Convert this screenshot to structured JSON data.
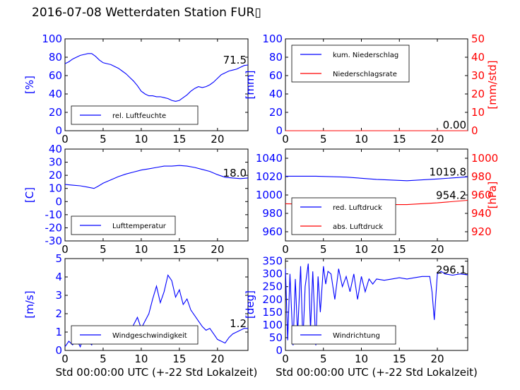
{
  "title": "2016-07-08 Wetterdaten Station FUR▯",
  "xlabel": "Std 00:00:00 UTC (+-22 Std Lokalzeit)",
  "colors": {
    "blue": "#0000ff",
    "red": "#ff0000",
    "black": "#000000"
  },
  "chart_data": [
    {
      "type": "line",
      "panel": "top-left",
      "xlim": [
        0,
        24
      ],
      "ylim": [
        0,
        100
      ],
      "xticks": [
        0,
        5,
        10,
        15,
        20
      ],
      "yticks": [
        0,
        20,
        40,
        60,
        80,
        100
      ],
      "ylabel": "[%]",
      "series": [
        {
          "name": "rel. Luftfeuchte",
          "color": "#0000ff",
          "x": [
            0,
            0.5,
            1,
            1.5,
            2,
            2.5,
            3,
            3.5,
            4,
            4.5,
            5,
            5.5,
            6,
            6.5,
            7,
            7.5,
            8,
            8.5,
            9,
            9.5,
            10,
            10.5,
            11,
            11.5,
            12,
            12.5,
            13,
            13.5,
            14,
            14.5,
            15,
            15.5,
            16,
            16.5,
            17,
            17.5,
            18,
            18.5,
            19,
            19.5,
            20,
            20.5,
            21,
            21.5,
            22,
            22.5,
            23,
            23.5,
            24
          ],
          "y": [
            73,
            75,
            78,
            80,
            82,
            83,
            84,
            84,
            81,
            77,
            74,
            73,
            72,
            70,
            68,
            65,
            62,
            58,
            54,
            49,
            43,
            40,
            38,
            38,
            37,
            37,
            36,
            35,
            33,
            32,
            33,
            36,
            39,
            43,
            46,
            48,
            47,
            48,
            50,
            53,
            57,
            61,
            63,
            65,
            66,
            67,
            69,
            71,
            71.5
          ]
        }
      ],
      "legend": "lower-left",
      "annotation": "71.5"
    },
    {
      "type": "line",
      "panel": "top-right",
      "xlim": [
        0,
        24
      ],
      "ylim": [
        0,
        100
      ],
      "xticks": [
        0,
        5,
        10,
        15,
        20
      ],
      "yticks": [
        0,
        20,
        40,
        60,
        80,
        100
      ],
      "y2lim": [
        0,
        50
      ],
      "y2ticks": [
        0,
        10,
        20,
        30,
        40,
        50
      ],
      "ylabel": "[mm]",
      "y2label": "[mm/std]",
      "series": [
        {
          "name": "kum. Niederschlag",
          "color": "#0000ff",
          "x": [
            0,
            24
          ],
          "y": [
            0,
            0
          ]
        },
        {
          "name": "Niederschlagsrate",
          "color": "#ff0000",
          "x": [
            0,
            24
          ],
          "y": [
            0,
            0
          ],
          "axis": "right"
        }
      ],
      "legend": "upper-left",
      "annotation": "0.00"
    },
    {
      "type": "line",
      "panel": "middle-left",
      "xlim": [
        0,
        24
      ],
      "ylim": [
        -30,
        40
      ],
      "xticks": [
        0,
        5,
        10,
        15,
        20
      ],
      "yticks": [
        -30,
        -20,
        -10,
        0,
        10,
        20,
        30,
        40
      ],
      "ylabel": "[C]",
      "series": [
        {
          "name": "Lufttemperatur",
          "color": "#0000ff",
          "x": [
            0,
            1,
            2,
            3,
            3.8,
            4.3,
            5,
            6,
            7,
            8,
            9,
            10,
            11,
            12,
            13,
            14,
            15,
            16,
            17,
            18,
            19,
            20,
            21,
            22,
            23,
            24
          ],
          "y": [
            13,
            12.5,
            12,
            11,
            10,
            11.5,
            14,
            16.5,
            19,
            21,
            22.5,
            24,
            25,
            26,
            27,
            27,
            27.5,
            27,
            26,
            24.5,
            23,
            20.5,
            18.5,
            18,
            17.5,
            18
          ]
        }
      ],
      "legend": "lower-left",
      "annotation": "18.0"
    },
    {
      "type": "line",
      "panel": "middle-right",
      "xlim": [
        0,
        24
      ],
      "ylim": [
        950,
        1050
      ],
      "xticks": [
        0,
        5,
        10,
        15,
        20
      ],
      "yticks": [
        960,
        980,
        1000,
        1020,
        1040
      ],
      "y2lim": [
        910,
        1010
      ],
      "y2ticks": [
        920,
        940,
        960,
        980,
        1000
      ],
      "y2label": "[hPa]",
      "series": [
        {
          "name": "red. Luftdruck",
          "color": "#0000ff",
          "x": [
            0,
            4,
            8,
            12,
            16,
            20,
            24
          ],
          "y": [
            1020.5,
            1020.5,
            1019.5,
            1017,
            1015.5,
            1017.5,
            1019.8
          ]
        },
        {
          "name": "abs. Luftdruck",
          "color": "#ff0000",
          "axis": "right",
          "x": [
            0,
            4,
            8,
            12,
            16,
            20,
            24
          ],
          "y": [
            950.5,
            950,
            950,
            949.5,
            949.5,
            951.5,
            954.2
          ]
        }
      ],
      "legend": "lower-left",
      "annotation": "1019.8",
      "annotation2": "954.2"
    },
    {
      "type": "line",
      "panel": "bottom-left",
      "xlim": [
        0,
        24
      ],
      "ylim": [
        0,
        5
      ],
      "xticks": [
        0,
        5,
        10,
        15,
        20
      ],
      "yticks": [
        0,
        1,
        2,
        3,
        4,
        5
      ],
      "ylabel": "[m/s]",
      "series": [
        {
          "name": "Windgeschwindigkeit",
          "color": "#0000ff",
          "x": [
            0,
            0.5,
            1,
            1.5,
            2,
            2.5,
            3,
            3.5,
            4,
            4.5,
            5,
            5.5,
            6,
            6.5,
            7,
            7.5,
            8,
            8.5,
            9,
            9.5,
            10,
            10.5,
            11,
            11.5,
            12,
            12.5,
            13,
            13.5,
            14,
            14.5,
            15,
            15.5,
            16,
            16.5,
            17,
            17.5,
            18,
            18.5,
            19,
            19.5,
            20,
            20.5,
            21,
            21.5,
            22,
            22.5,
            23,
            23.5,
            24
          ],
          "y": [
            0.2,
            0.5,
            0.3,
            0.6,
            0.2,
            0.8,
            0.5,
            0.3,
            0.9,
            0.7,
            0.4,
            0.6,
            0.8,
            0.7,
            1.0,
            0.9,
            1.3,
            0.8,
            1.4,
            1.8,
            1.2,
            1.6,
            2.0,
            2.8,
            3.5,
            2.6,
            3.2,
            4.1,
            3.8,
            2.9,
            3.3,
            2.5,
            2.8,
            2.2,
            1.9,
            1.6,
            1.3,
            1.1,
            1.2,
            0.9,
            0.6,
            0.5,
            0.4,
            0.7,
            0.9,
            1.0,
            1.1,
            1.2,
            1.2
          ]
        }
      ],
      "legend": "lower-left",
      "annotation": "1.2"
    },
    {
      "type": "line",
      "panel": "bottom-right",
      "xlim": [
        0,
        24
      ],
      "ylim": [
        0,
        360
      ],
      "xticks": [
        0,
        5,
        10,
        15,
        20
      ],
      "yticks": [
        0,
        50,
        100,
        150,
        200,
        250,
        300,
        350
      ],
      "ylabel": "[deg]",
      "series": [
        {
          "name": "Windrichtung",
          "color": "#0000ff",
          "x": [
            0,
            0.3,
            0.6,
            1,
            1.3,
            1.6,
            2,
            2.3,
            2.6,
            3,
            3.3,
            3.6,
            4,
            4.3,
            4.6,
            5,
            5.3,
            5.6,
            6,
            6.5,
            7,
            7.5,
            8,
            8.5,
            9,
            9.5,
            10,
            10.5,
            11,
            11.5,
            12,
            13,
            14,
            15,
            16,
            17,
            18,
            19,
            19.3,
            19.6,
            20,
            20.5,
            21,
            22,
            23,
            24
          ],
          "y": [
            320,
            40,
            300,
            20,
            280,
            60,
            330,
            30,
            250,
            340,
            80,
            310,
            20,
            290,
            150,
            330,
            260,
            310,
            300,
            200,
            320,
            250,
            290,
            230,
            300,
            200,
            290,
            230,
            280,
            260,
            280,
            275,
            280,
            285,
            280,
            285,
            290,
            290,
            230,
            120,
            300,
            310,
            300,
            295,
            300,
            296
          ]
        }
      ],
      "legend": "lower-left",
      "annotation": "296.1"
    }
  ]
}
